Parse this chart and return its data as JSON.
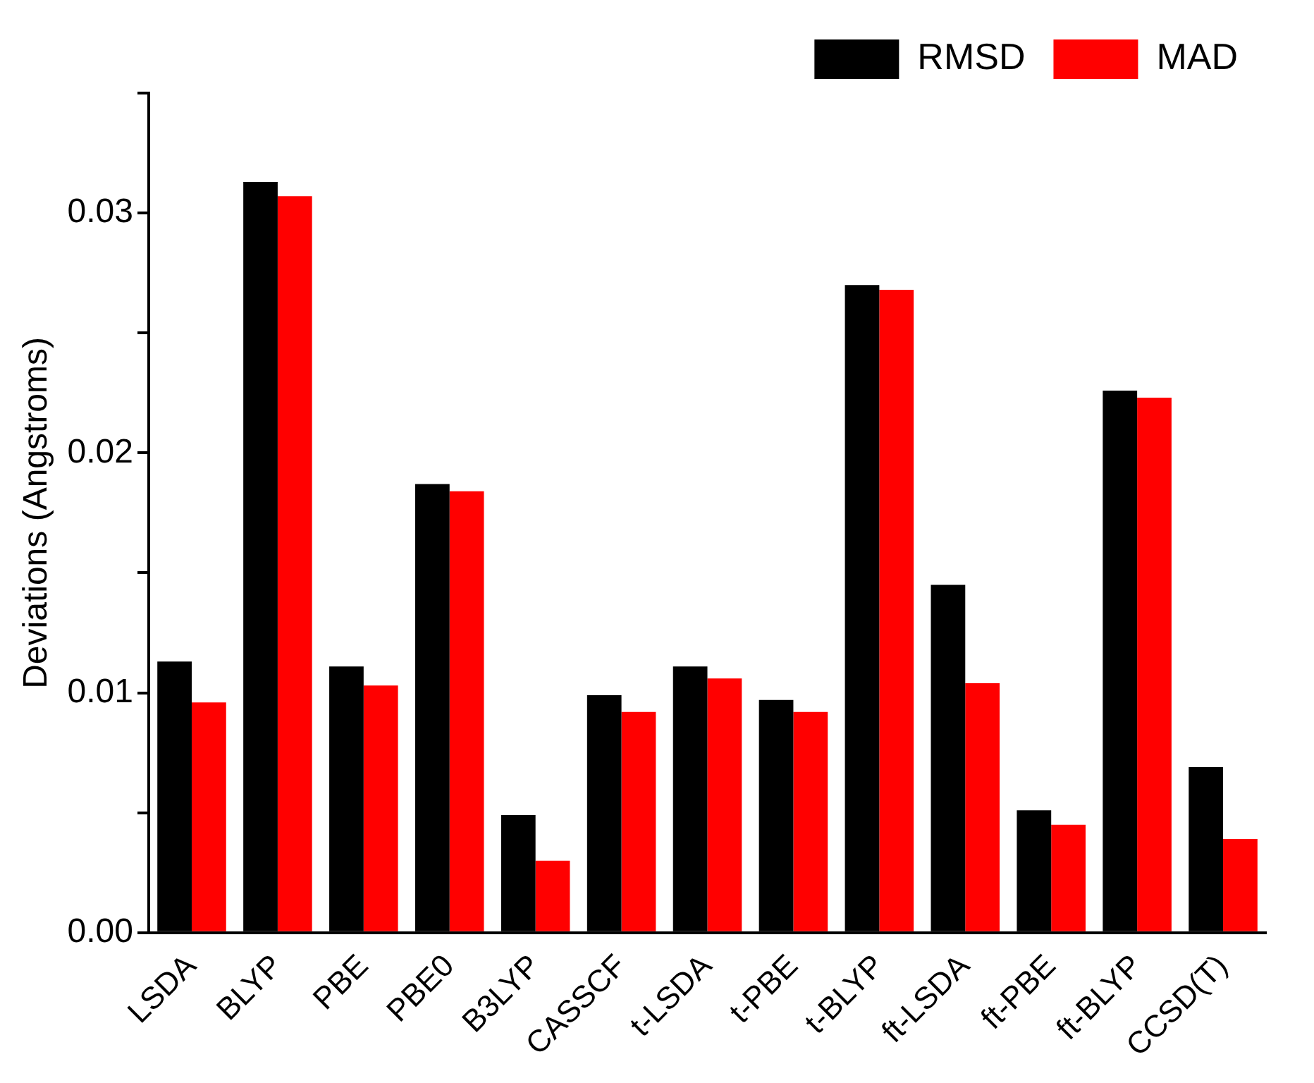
{
  "chart_data": {
    "type": "bar",
    "ylabel": "Deviations (Angstroms)",
    "categories": [
      "LSDA",
      "BLYP",
      "PBE",
      "PBE0",
      "B3LYP",
      "CASSCF",
      "t-LSDA",
      "t-PBE",
      "t-BLYP",
      "ft-LSDA",
      "ft-PBE",
      "ft-BLYP",
      "CCSD(T)"
    ],
    "series": [
      {
        "name": "RMSD",
        "color": "#000000",
        "values": [
          0.0113,
          0.0313,
          0.0111,
          0.0187,
          0.0049,
          0.0099,
          0.0111,
          0.0097,
          0.027,
          0.0145,
          0.0051,
          0.0226,
          0.0069
        ]
      },
      {
        "name": "MAD",
        "color": "#ff0000",
        "values": [
          0.0096,
          0.0307,
          0.0103,
          0.0184,
          0.003,
          0.0092,
          0.0106,
          0.0092,
          0.0268,
          0.0104,
          0.0045,
          0.0223,
          0.0039
        ]
      }
    ],
    "ylim": [
      0,
      0.035
    ],
    "yticks": [
      {
        "value": 0,
        "label": "0.00"
      },
      {
        "value": 0.005,
        "label": null
      },
      0.01,
      {
        "value": 0.015,
        "label": null
      },
      0.02,
      {
        "value": 0.025,
        "label": null
      },
      0.03,
      {
        "value": 0.035,
        "label": null
      }
    ],
    "grid": false,
    "legend": "top right"
  }
}
